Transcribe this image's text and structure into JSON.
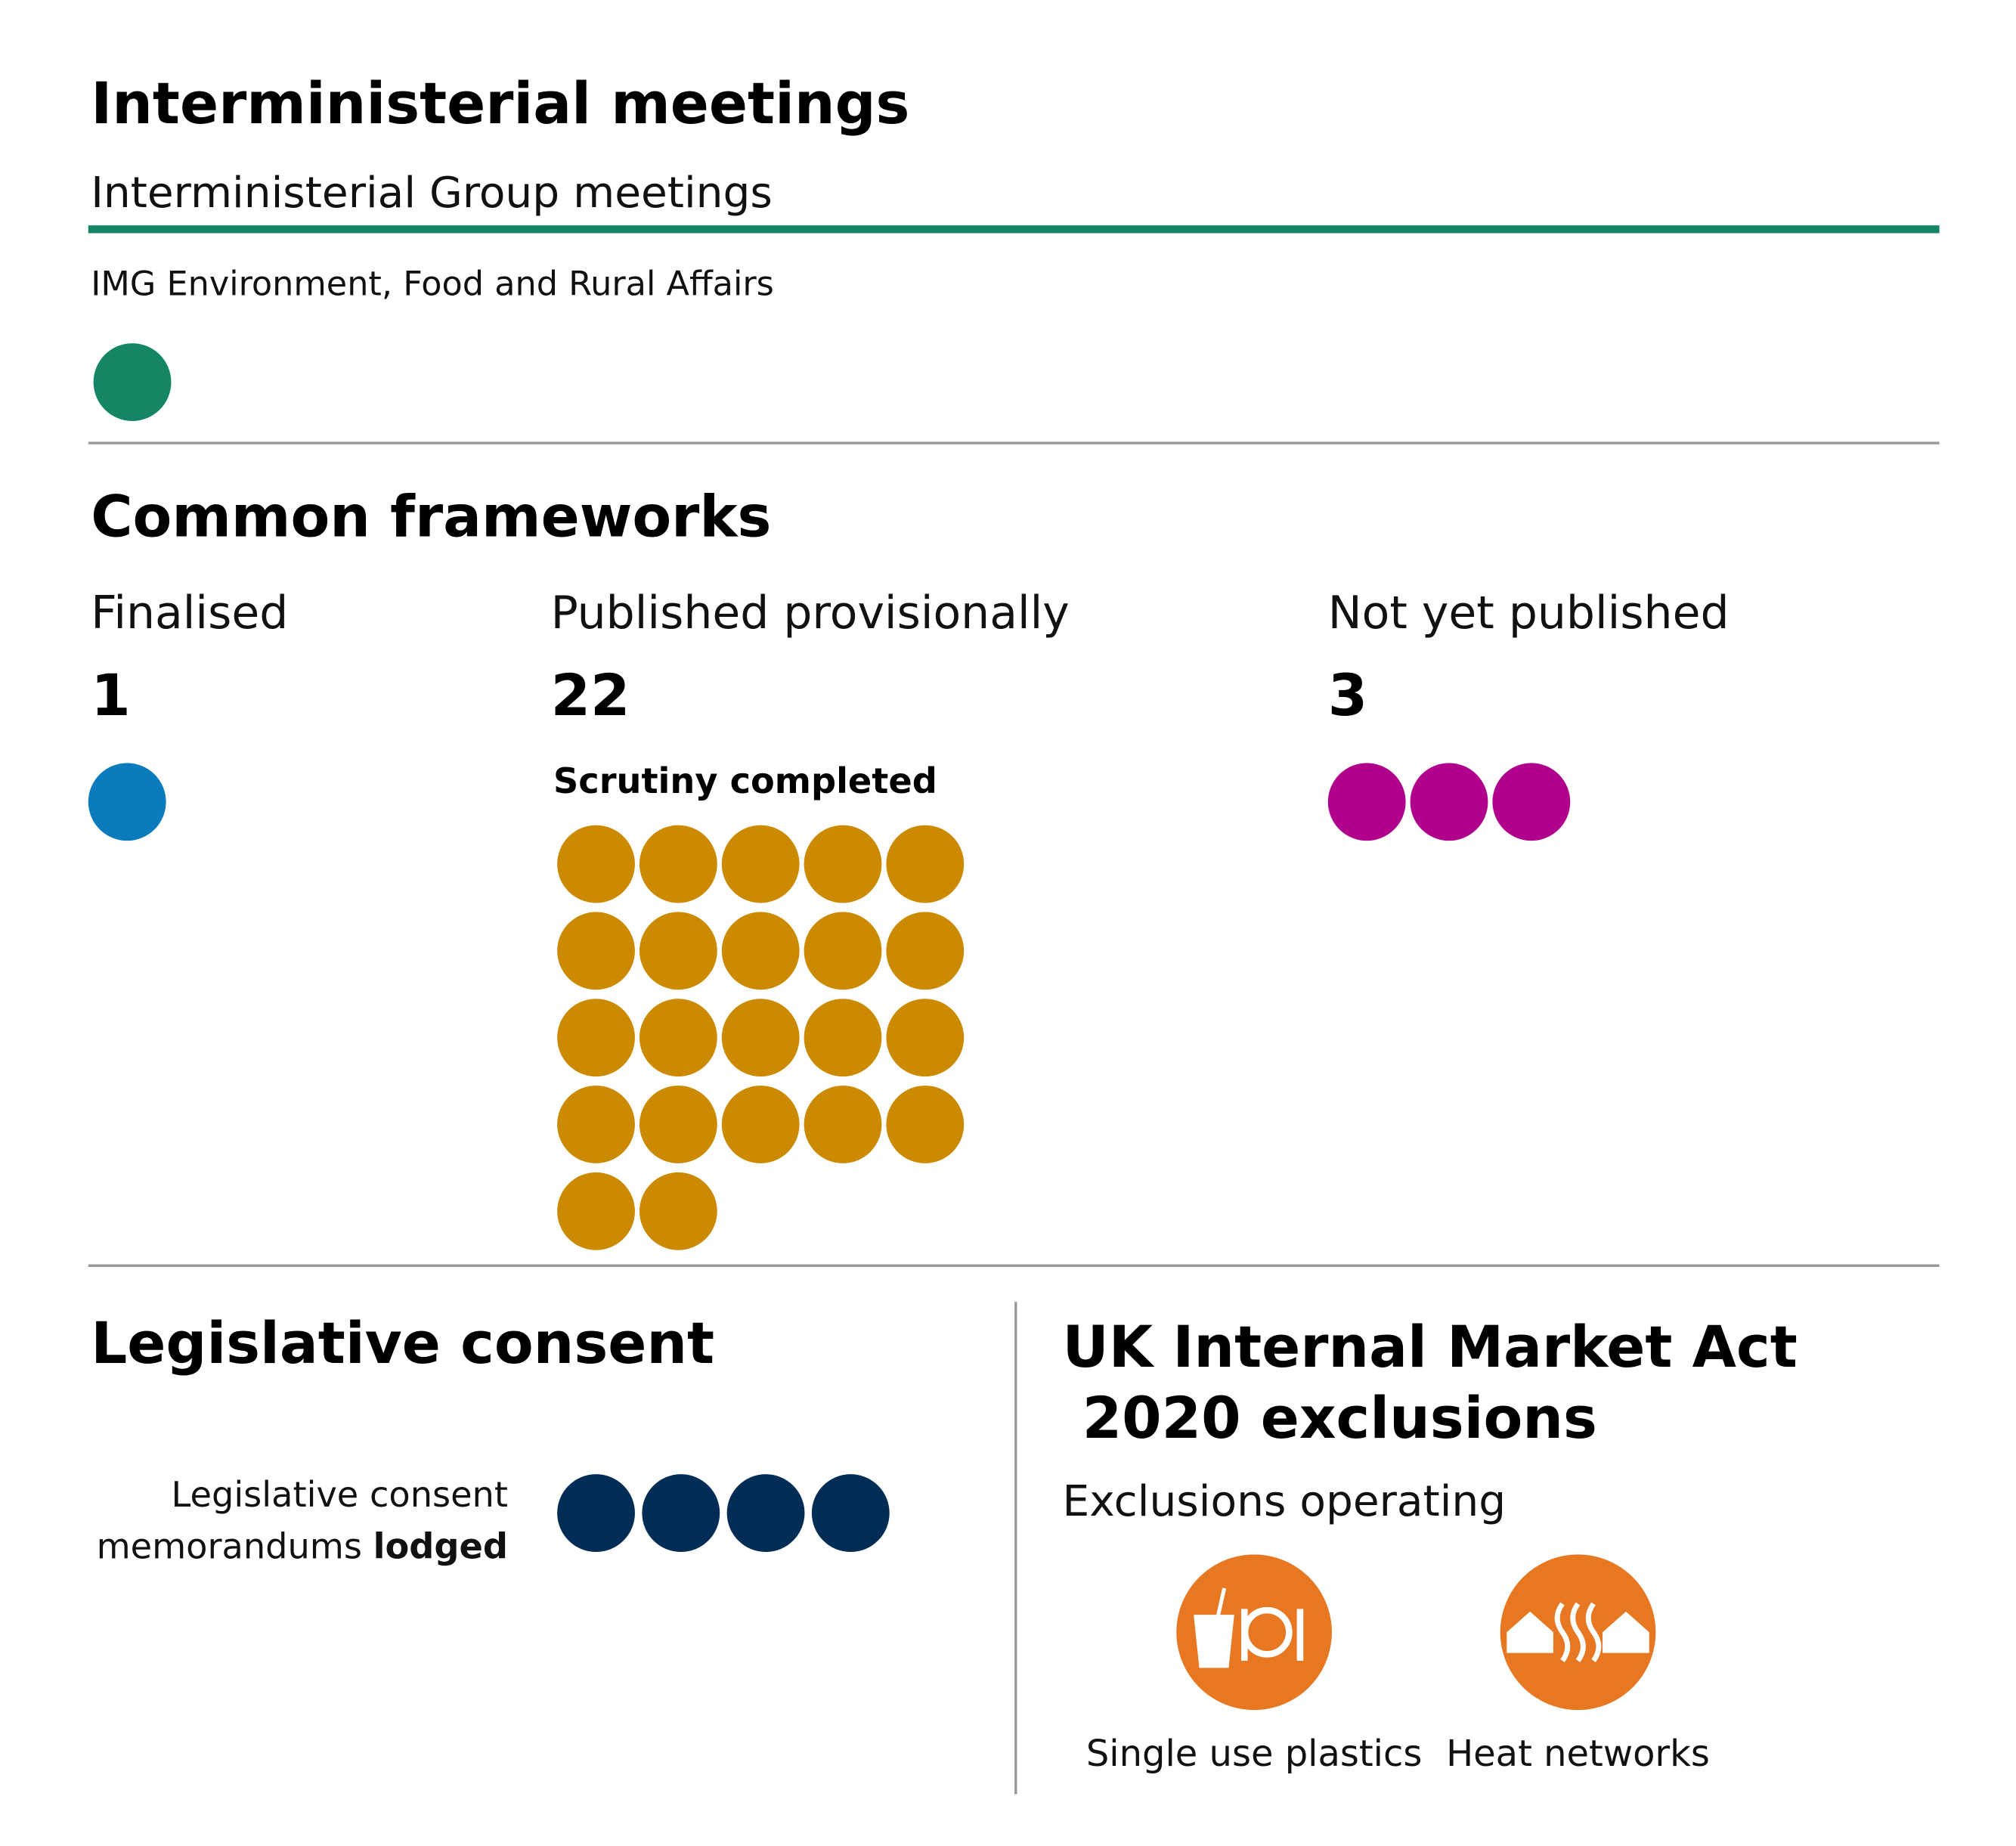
{
  "meetings": {
    "title": "Interministerial meetings",
    "subtitle": "Interministerial Group meetings",
    "group": "IMG Environment, Food and Rural Affairs",
    "count": 1,
    "color": "#148665"
  },
  "frameworks": {
    "title": "Common frameworks",
    "finalised": {
      "label": "Finalised",
      "value": 1,
      "color": "#0a7bbd"
    },
    "provisional": {
      "label": "Published provisionally",
      "value": 22,
      "note": "Scrutiny completed",
      "color": "#cc8a00"
    },
    "unpublished": {
      "label": "Not yet published",
      "value": 3,
      "color": "#b0008c"
    }
  },
  "consent": {
    "title": "Legislative consent",
    "label_line1": "Legislative consent",
    "label_line2": "memorandums",
    "label_bold": "lodged",
    "count": 4,
    "color": "#002d55"
  },
  "market_act": {
    "title_line1": "UK Internal Market Act",
    "title_line2": " 2020 exclusions",
    "subtitle": "Exclusions operating",
    "items": [
      {
        "label": "Single use plastics"
      },
      {
        "label": "Heat networks"
      }
    ],
    "color": "#e87722"
  }
}
